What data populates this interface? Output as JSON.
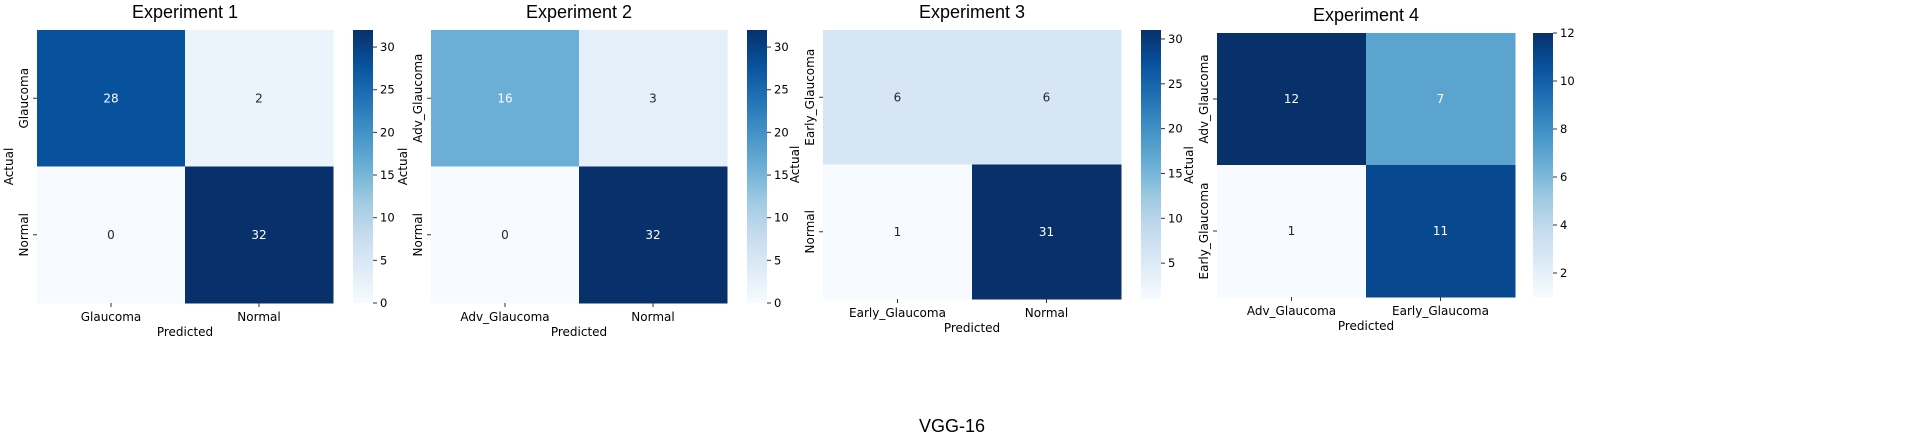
{
  "caption": "VGG-16",
  "colors": {
    "colormap": [
      "#f7fbff",
      "#deebf7",
      "#c6dbef",
      "#9ecae1",
      "#6baed6",
      "#4292c6",
      "#2171b5",
      "#08519c",
      "#08306b"
    ],
    "text_on_dark": "#ffffff",
    "text_on_light": "#262626"
  },
  "chart_data": [
    {
      "type": "heatmap",
      "title": "Experiment 1",
      "xlabel": "Predicted",
      "ylabel": "Actual",
      "row_labels": [
        "Glaucoma",
        "Normal"
      ],
      "col_labels": [
        "Glaucoma",
        "Normal"
      ],
      "matrix": [
        [
          28,
          2
        ],
        [
          0,
          32
        ]
      ],
      "vmin": 0,
      "vmax": 32,
      "colorbar_ticks": [
        0,
        5,
        10,
        15,
        20,
        25,
        30
      ],
      "colorbar": "Blues"
    },
    {
      "type": "heatmap",
      "title": "Experiment 2",
      "xlabel": "Predicted",
      "ylabel": "Actual",
      "row_labels": [
        "Adv_Glaucoma",
        "Normal"
      ],
      "col_labels": [
        "Adv_Glaucoma",
        "Normal"
      ],
      "matrix": [
        [
          16,
          3
        ],
        [
          0,
          32
        ]
      ],
      "vmin": 0,
      "vmax": 32,
      "colorbar_ticks": [
        0,
        5,
        10,
        15,
        20,
        25,
        30
      ],
      "colorbar": "Blues"
    },
    {
      "type": "heatmap",
      "title": "Experiment 3",
      "xlabel": "Predicted",
      "ylabel": "Actual",
      "row_labels": [
        "Early_Glaucoma",
        "Normal"
      ],
      "col_labels": [
        "Early_Glaucoma",
        "Normal"
      ],
      "matrix": [
        [
          6,
          6
        ],
        [
          1,
          31
        ]
      ],
      "vmin": 1,
      "vmax": 31,
      "colorbar_ticks": [
        5,
        10,
        15,
        20,
        25,
        30
      ],
      "colorbar": "Blues"
    },
    {
      "type": "heatmap",
      "title": "Experiment 4",
      "xlabel": "Predicted",
      "ylabel": "Actual",
      "row_labels": [
        "Adv_Glaucoma",
        "Early_Glaucoma"
      ],
      "col_labels": [
        "Adv_Glaucoma",
        "Early_Glaucoma"
      ],
      "matrix": [
        [
          12,
          7
        ],
        [
          1,
          11
        ]
      ],
      "vmin": 1,
      "vmax": 12,
      "colorbar_ticks": [
        2,
        4,
        6,
        8,
        10,
        12
      ],
      "colorbar": "Blues"
    }
  ]
}
